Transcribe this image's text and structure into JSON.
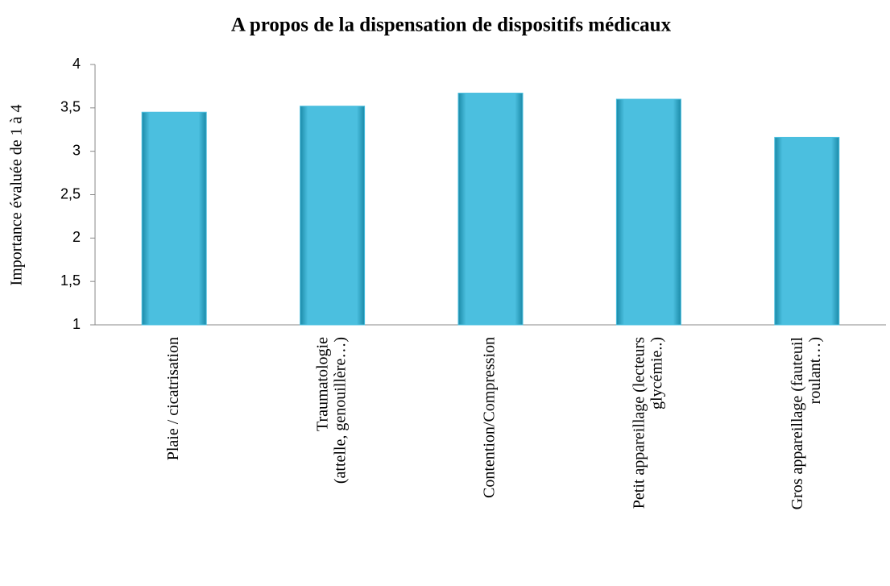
{
  "chart_data": {
    "type": "bar",
    "title": "A propos de la dispensation de dispositifs médicaux",
    "y_label": "Importance évaluée de 1 à 4",
    "categories": [
      "Plaie / cicatrisation",
      "Traumatologie\n(attelle, genouillère…)",
      "Contention/Compression",
      "Petit appareillage (lecteurs\nglycémie..)",
      "Gros appareillage (fauteuil\nroulant…)"
    ],
    "values": [
      3.45,
      3.52,
      3.67,
      3.6,
      3.16
    ],
    "color": "#4bbfdf",
    "ylim": [
      1,
      4
    ],
    "yticks": [
      1,
      {
        "value": 1.5,
        "label": "1,5"
      },
      2,
      {
        "value": 2.5,
        "label": "2,5"
      },
      3,
      {
        "value": 3.5,
        "label": "3,5"
      },
      4
    ],
    "grid": false
  }
}
